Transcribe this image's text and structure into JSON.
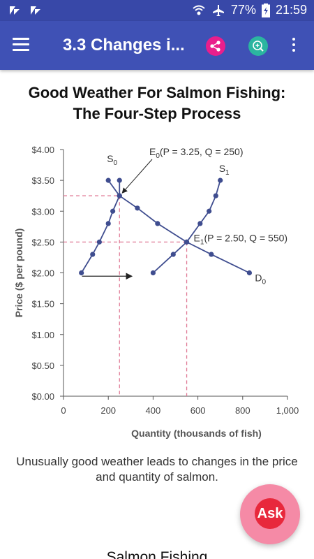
{
  "status_bar": {
    "battery": "77%",
    "time": "21:59",
    "icons": [
      "notification-icon",
      "notification-icon",
      "wifi-icon",
      "airplane-icon",
      "battery-icon"
    ]
  },
  "app_bar": {
    "title": "3.3 Changes i...",
    "icons": [
      "menu-icon",
      "share-icon",
      "zoom-in-icon",
      "more-vert-icon"
    ]
  },
  "content": {
    "heading_line1": "Good Weather For Salmon Fishing:",
    "heading_line2": "The Four-Step Process",
    "caption": "Unusually good weather leads to changes in the price and quantity of salmon.",
    "next_heading": "Salmon Fishing"
  },
  "fab": {
    "label": "Ask"
  },
  "colors": {
    "status_bar": "#3848a8",
    "app_bar": "#3f51b5",
    "chart_line": "#3f4d8f",
    "chart_dash": "#e07a96",
    "fab_outer": "#f58aa6",
    "fab_inner": "#e8283c"
  },
  "chart_data": {
    "type": "line",
    "xlabel": "Quantity (thousands of fish)",
    "ylabel": "Price ($ per pound)",
    "xlim": [
      0,
      1000
    ],
    "ylim": [
      0,
      4.0
    ],
    "x_ticks": [
      0,
      200,
      400,
      600,
      800,
      1000
    ],
    "x_tick_labels": [
      "0",
      "200",
      "400",
      "600",
      "800",
      "1,000"
    ],
    "y_ticks": [
      0,
      0.5,
      1.0,
      1.5,
      2.0,
      2.5,
      3.0,
      3.5,
      4.0
    ],
    "y_tick_labels": [
      "$0.00",
      "$0.50",
      "$1.00",
      "$1.50",
      "$2.00",
      "$2.50",
      "$3.00",
      "$3.50",
      "$4.00"
    ],
    "series": [
      {
        "name": "S0",
        "points": [
          [
            80,
            2.0
          ],
          [
            130,
            2.3
          ],
          [
            160,
            2.5
          ],
          [
            200,
            2.8
          ],
          [
            220,
            3.0
          ],
          [
            250,
            3.25
          ],
          [
            200,
            3.5
          ]
        ]
      },
      {
        "name": "S1",
        "points": [
          [
            400,
            2.0
          ],
          [
            490,
            2.3
          ],
          [
            550,
            2.5
          ],
          [
            610,
            2.8
          ],
          [
            650,
            3.0
          ],
          [
            680,
            3.25
          ],
          [
            700,
            3.5
          ]
        ]
      },
      {
        "name": "D0",
        "points": [
          [
            250,
            3.5
          ],
          [
            250,
            3.25
          ],
          [
            330,
            3.05
          ],
          [
            420,
            2.8
          ],
          [
            550,
            2.5
          ],
          [
            660,
            2.3
          ],
          [
            830,
            2.0
          ]
        ]
      }
    ],
    "series_labels": [
      "S",
      "S",
      "D"
    ],
    "series_subscripts": [
      "0",
      "1",
      "0"
    ],
    "equilibria": [
      {
        "letter": "E",
        "sub": "0",
        "text": "(P = 3.25, Q = 250)",
        "q": 250,
        "p": 3.25
      },
      {
        "letter": "E",
        "sub": "1",
        "text": "(P = 2.50, Q = 550)",
        "q": 550,
        "p": 2.5
      }
    ],
    "shift_arrow": {
      "from_q": 170,
      "to_q": 330,
      "p": 2.15
    }
  }
}
